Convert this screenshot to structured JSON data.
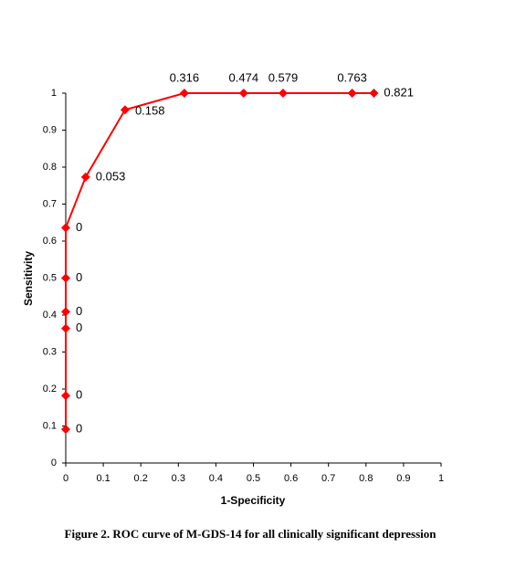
{
  "chart_data": {
    "type": "line",
    "title": "Figure 2. ROC curve of M-GDS-14 for all clinically significant depression",
    "x_label": "1-Specificity",
    "y_label": "Sensitivity",
    "x": [
      0,
      0,
      0,
      0,
      0,
      0,
      0.053,
      0.158,
      0.316,
      0.474,
      0.579,
      0.763,
      0.821
    ],
    "values": [
      0.091,
      0.182,
      0.364,
      0.409,
      0.5,
      0.636,
      0.773,
      0.955,
      1,
      1,
      1,
      1,
      1
    ],
    "color": "#ff0000",
    "marker": "diamond",
    "xlim": [
      0,
      1
    ],
    "ylim": [
      0,
      1
    ],
    "xticks": [
      0,
      0.1,
      0.2,
      0.3,
      0.4,
      0.5,
      0.6,
      0.7,
      0.8,
      0.9,
      1
    ],
    "yticks": [
      0,
      0.1,
      0.2,
      0.3,
      0.4,
      0.5,
      0.6,
      0.7,
      0.8,
      0.9,
      1
    ],
    "grid": false
  }
}
